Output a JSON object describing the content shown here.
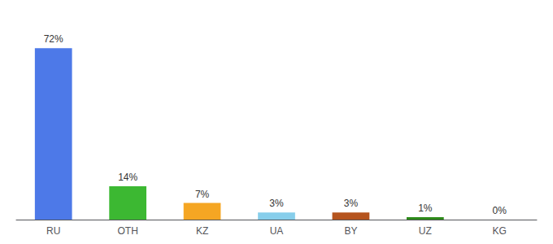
{
  "chart_data": {
    "type": "bar",
    "categories": [
      "RU",
      "OTH",
      "KZ",
      "UA",
      "BY",
      "UZ",
      "KG"
    ],
    "values": [
      72,
      14,
      7,
      3,
      3,
      1,
      0
    ],
    "value_labels": [
      "72%",
      "14%",
      "7%",
      "3%",
      "3%",
      "1%",
      "0%"
    ],
    "colors": [
      "#4d79e8",
      "#3cb832",
      "#f5a623",
      "#87ceeb",
      "#b5541e",
      "#2e8b1a",
      "#cccccc"
    ],
    "ylim": [
      0,
      82
    ],
    "data_labels": true,
    "tick_labels": "x",
    "grid": false
  }
}
